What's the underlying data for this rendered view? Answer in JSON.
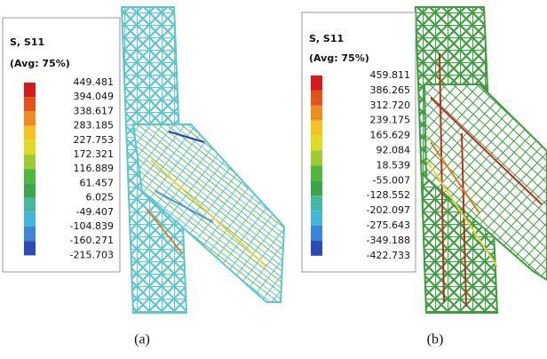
{
  "panels": [
    {
      "legend": {
        "title": "S, S11",
        "subtitle": "(Avg: 75%)",
        "values": [
          "449.481",
          "394.049",
          "338.617",
          "283.185",
          "227.753",
          "172.321",
          "116.889",
          "61.457",
          "6.025",
          "-49.407",
          "-104.839",
          "-160.271",
          "-215.703"
        ]
      },
      "caption": "(a)"
    },
    {
      "legend": {
        "title": "S, S11",
        "subtitle": "(Avg: 75%)",
        "values": [
          "459.811",
          "386.265",
          "312.720",
          "239.175",
          "165.629",
          "92.084",
          "18.539",
          "-55.007",
          "-128.552",
          "-202.097",
          "-275.643",
          "-349.188",
          "-422.733"
        ]
      },
      "caption": "(b)"
    }
  ]
}
